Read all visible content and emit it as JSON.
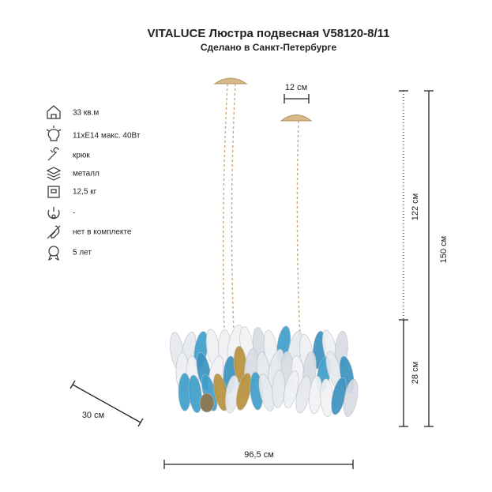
{
  "header": {
    "title": "VITALUCE Люстра подвесная V58120-8/11",
    "subtitle": "Сделано в Санкт-Петербурге"
  },
  "specs": [
    "33 кв.м",
    "11хЕ14 макс. 40Вт",
    "крюк",
    "металл",
    "12,5 кг",
    "-",
    "нет в комплекте",
    "5 лет"
  ],
  "dimensions": {
    "canopy": "12 см",
    "chain": "122 см",
    "body_height": "28 см",
    "total_height": "150 см",
    "depth": "30 см",
    "width": "96,5 см"
  }
}
